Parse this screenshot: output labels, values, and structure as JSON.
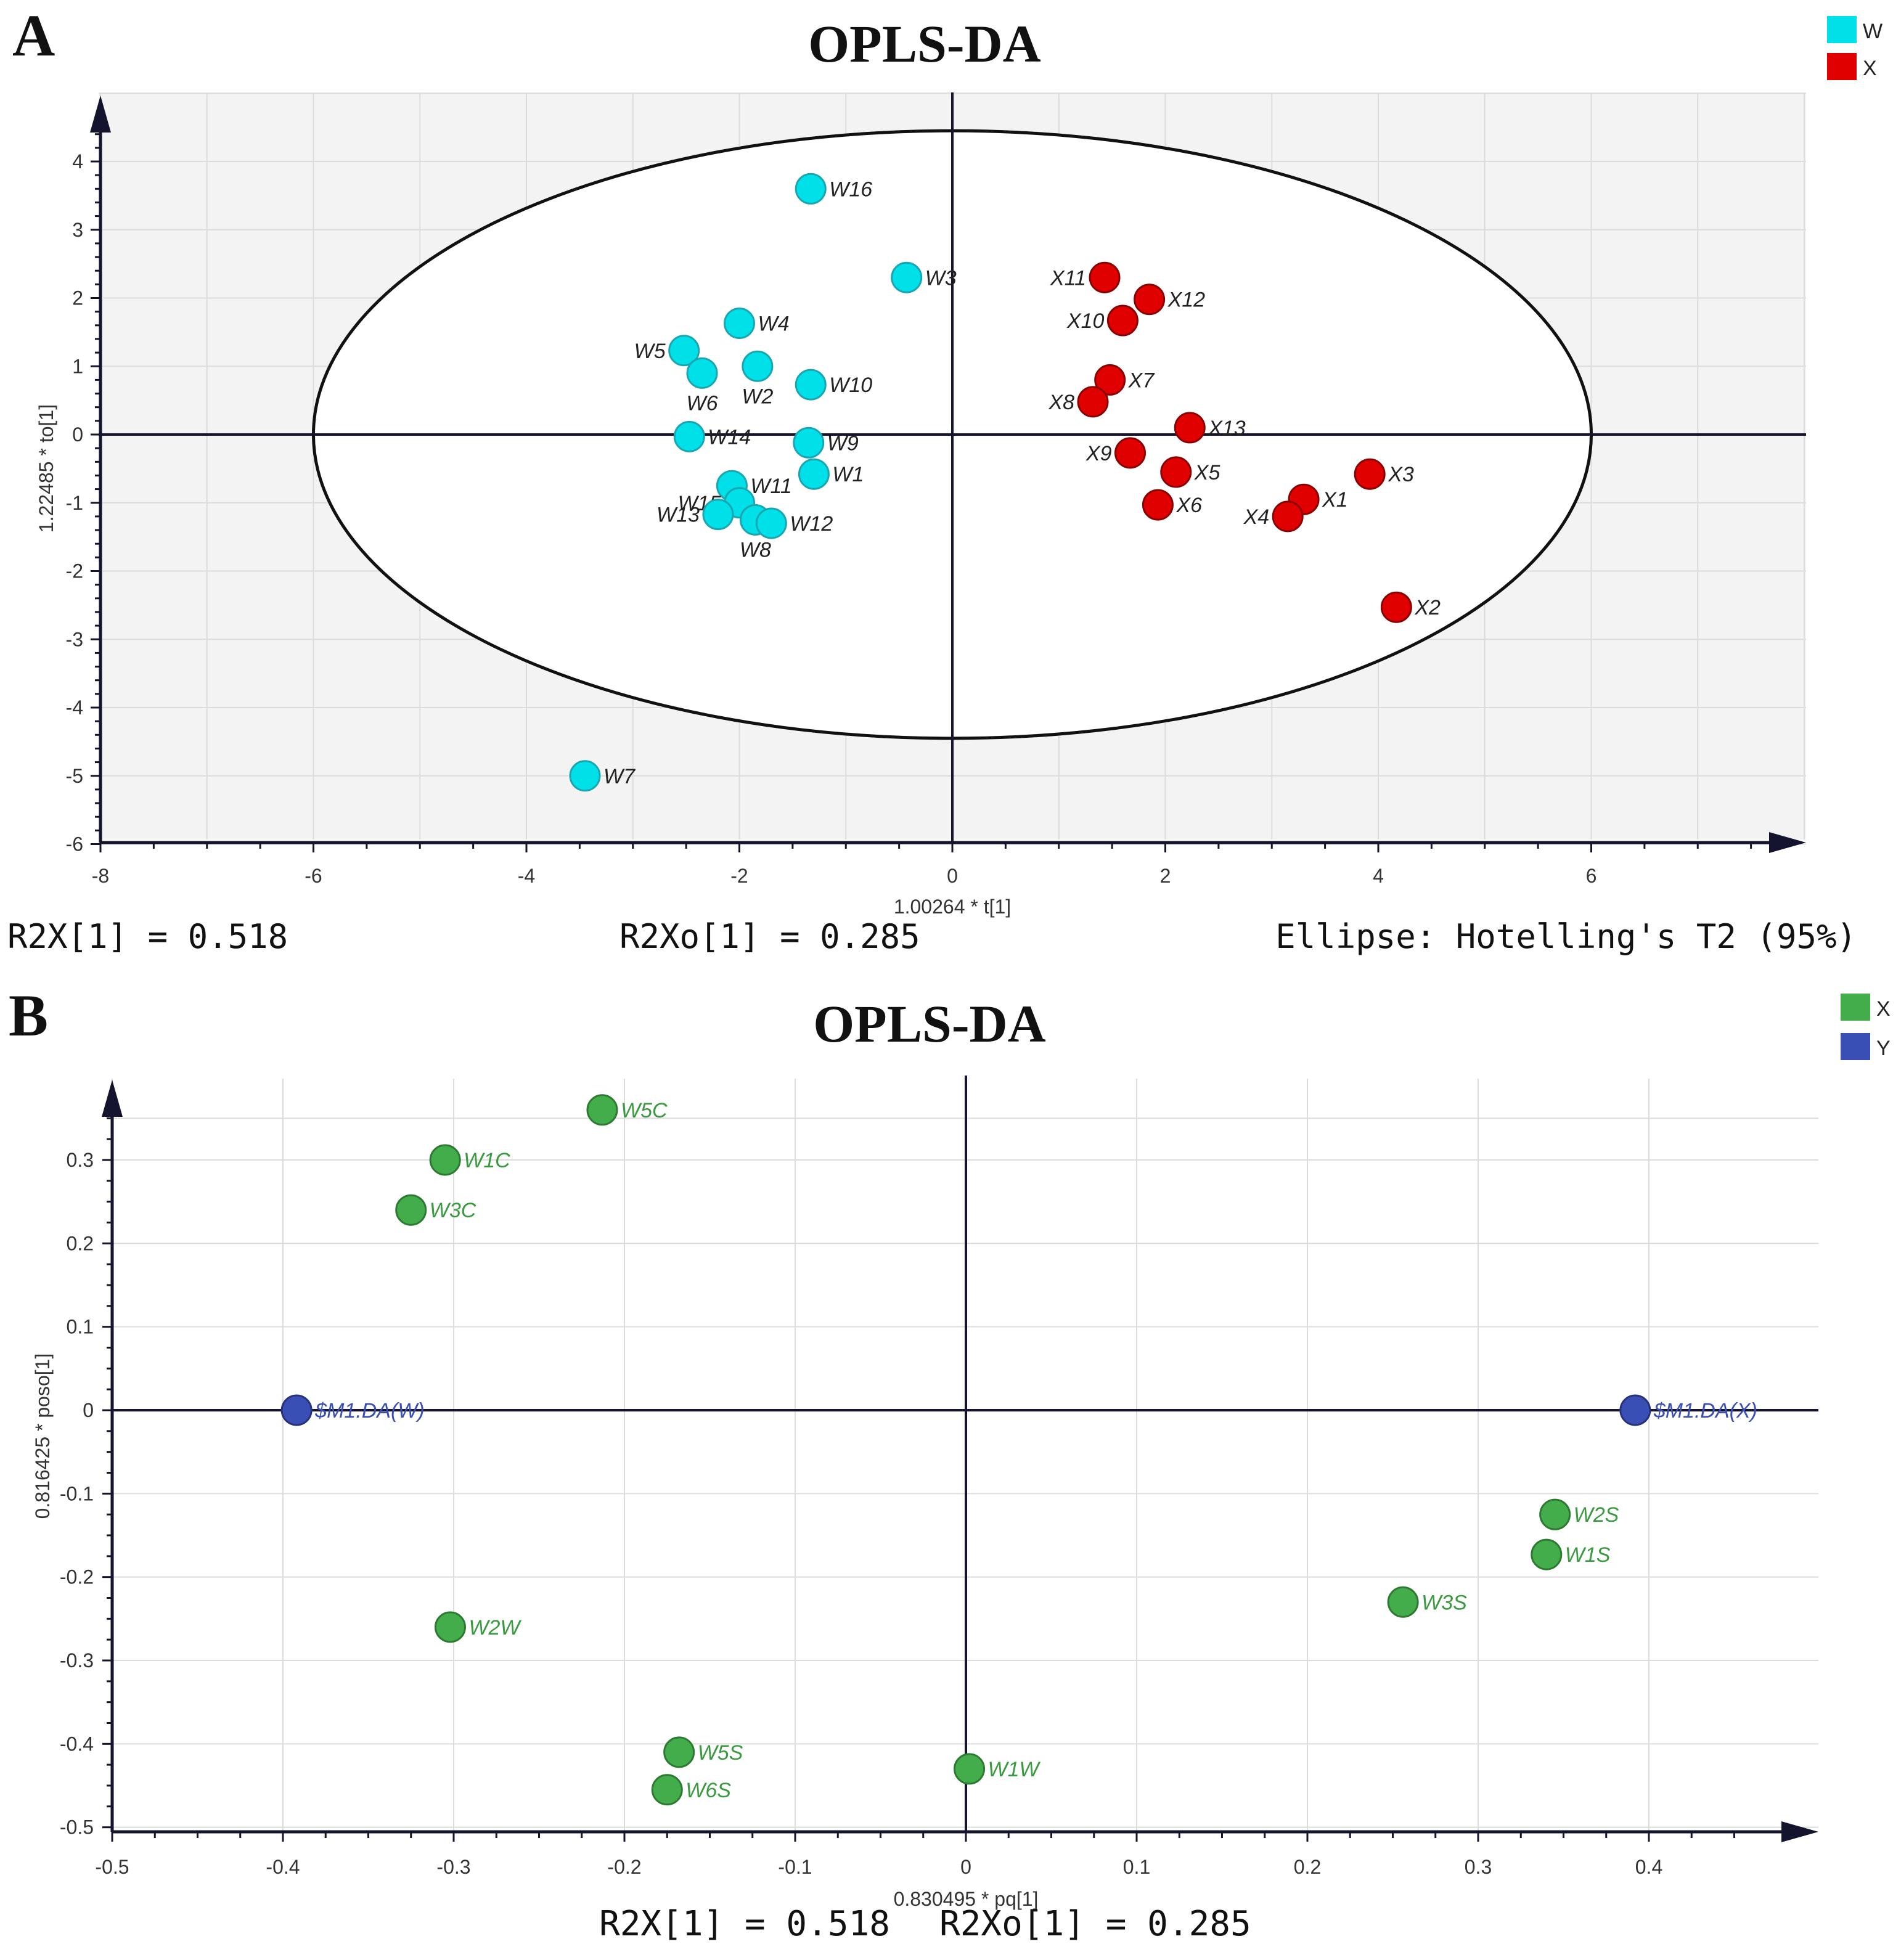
{
  "colors": {
    "plot_bg": "#f3f3f3",
    "grid": "#dcdcdc",
    "axis": "#14142e",
    "w": "#00e0e8",
    "w_stroke": "#1aa6b0",
    "x_red": "#e00000",
    "x_red_stroke": "#8a0000",
    "x_green": "#44ad4b",
    "x_green_stroke": "#2c7a32",
    "y_blue": "#3a4fb5",
    "y_blue_stroke": "#26327a",
    "label_green": "#3a9a40",
    "label_blue": "#3a4fb5"
  },
  "chart_data": [
    {
      "id": "A",
      "panel_letter": "A",
      "type": "scatter",
      "title": "OPLS-DA",
      "xlabel": "1.00264 * t[1]",
      "ylabel": "1.22485 * to[1]",
      "xlim": [
        -8,
        8
      ],
      "ylim": [
        -6,
        5
      ],
      "xticks": [
        -8,
        -6,
        -4,
        -2,
        0,
        2,
        4,
        6
      ],
      "yticks": [
        -6,
        -5,
        -4,
        -3,
        -2,
        -1,
        0,
        1,
        2,
        3,
        4
      ],
      "grid": true,
      "legend_position": "top-right",
      "ellipse": {
        "label": "Hotelling's T2 (95%)",
        "rx": 6,
        "ry": 4.45
      },
      "footer": {
        "left": "R2X[1] = 0.518",
        "middle": "R2Xo[1] = 0.285",
        "right": "Ellipse: Hotelling's T2 (95%)"
      },
      "series": [
        {
          "name": "W",
          "color_key": "w",
          "points": [
            {
              "label": "W16",
              "x": -1.33,
              "y": 3.6
            },
            {
              "label": "W3",
              "x": -0.43,
              "y": 2.3
            },
            {
              "label": "W4",
              "x": -2.0,
              "y": 1.63
            },
            {
              "label": "W5",
              "x": -2.52,
              "y": 1.23
            },
            {
              "label": "W6",
              "x": -2.35,
              "y": 0.9
            },
            {
              "label": "W2",
              "x": -1.83,
              "y": 1.0
            },
            {
              "label": "W10",
              "x": -1.33,
              "y": 0.73
            },
            {
              "label": "W14",
              "x": -2.47,
              "y": -0.03
            },
            {
              "label": "W9",
              "x": -1.35,
              "y": -0.12
            },
            {
              "label": "W1",
              "x": -1.3,
              "y": -0.58
            },
            {
              "label": "W11",
              "x": -2.07,
              "y": -0.75
            },
            {
              "label": "W15",
              "x": -2.0,
              "y": -1.0
            },
            {
              "label": "W13",
              "x": -2.2,
              "y": -1.17
            },
            {
              "label": "W8",
              "x": -1.85,
              "y": -1.25
            },
            {
              "label": "W12",
              "x": -1.7,
              "y": -1.3
            },
            {
              "label": "W7",
              "x": -3.45,
              "y": -5.0
            }
          ]
        },
        {
          "name": "X",
          "color_key": "x_red",
          "points": [
            {
              "label": "X11",
              "x": 1.43,
              "y": 2.3
            },
            {
              "label": "X12",
              "x": 1.85,
              "y": 1.98
            },
            {
              "label": "X10",
              "x": 1.6,
              "y": 1.67
            },
            {
              "label": "X7",
              "x": 1.48,
              "y": 0.8
            },
            {
              "label": "X8",
              "x": 1.32,
              "y": 0.48
            },
            {
              "label": "X13",
              "x": 2.23,
              "y": 0.1
            },
            {
              "label": "X9",
              "x": 1.67,
              "y": -0.27
            },
            {
              "label": "X5",
              "x": 2.1,
              "y": -0.55
            },
            {
              "label": "X6",
              "x": 1.93,
              "y": -1.03
            },
            {
              "label": "X3",
              "x": 3.92,
              "y": -0.58
            },
            {
              "label": "X1",
              "x": 3.3,
              "y": -0.95
            },
            {
              "label": "X4",
              "x": 3.15,
              "y": -1.2
            },
            {
              "label": "X2",
              "x": 4.17,
              "y": -2.53
            }
          ]
        }
      ]
    },
    {
      "id": "B",
      "panel_letter": "B",
      "type": "scatter",
      "title": "OPLS-DA",
      "xlabel": "0.830495 * pq[1]",
      "ylabel": "0.816425 * poso[1]",
      "xlim": [
        -0.5,
        0.5
      ],
      "ylim": [
        -0.5,
        0.4
      ],
      "xticks": [
        -0.5,
        -0.4,
        -0.3,
        -0.2,
        -0.1,
        0,
        0.1,
        0.2,
        0.3,
        0.4
      ],
      "yticks": [
        -0.5,
        -0.4,
        -0.3,
        -0.2,
        -0.1,
        0,
        0.1,
        0.2,
        0.3
      ],
      "grid": true,
      "legend_position": "top-right",
      "footer": {
        "left": "R2X[1] = 0.518",
        "right": "R2Xo[1] = 0.285"
      },
      "series": [
        {
          "name": "X",
          "color_key": "x_green",
          "label_color_key": "label_green",
          "points": [
            {
              "label": "W5C",
              "x": -0.213,
              "y": 0.36
            },
            {
              "label": "W1C",
              "x": -0.305,
              "y": 0.3
            },
            {
              "label": "W3C",
              "x": -0.325,
              "y": 0.24
            },
            {
              "label": "W2W",
              "x": -0.302,
              "y": -0.26
            },
            {
              "label": "W5S",
              "x": -0.168,
              "y": -0.41
            },
            {
              "label": "W6S",
              "x": -0.175,
              "y": -0.455
            },
            {
              "label": "W1W",
              "x": 0.002,
              "y": -0.43
            },
            {
              "label": "W2S",
              "x": 0.345,
              "y": -0.125
            },
            {
              "label": "W1S",
              "x": 0.34,
              "y": -0.173
            },
            {
              "label": "W3S",
              "x": 0.256,
              "y": -0.23
            }
          ]
        },
        {
          "name": "Y",
          "color_key": "y_blue",
          "label_color_key": "label_blue",
          "points": [
            {
              "label": "$M1.DA(W)",
              "x": -0.392,
              "y": 0.0
            },
            {
              "label": "$M1.DA(X)",
              "x": 0.392,
              "y": 0.0
            }
          ]
        }
      ]
    }
  ]
}
